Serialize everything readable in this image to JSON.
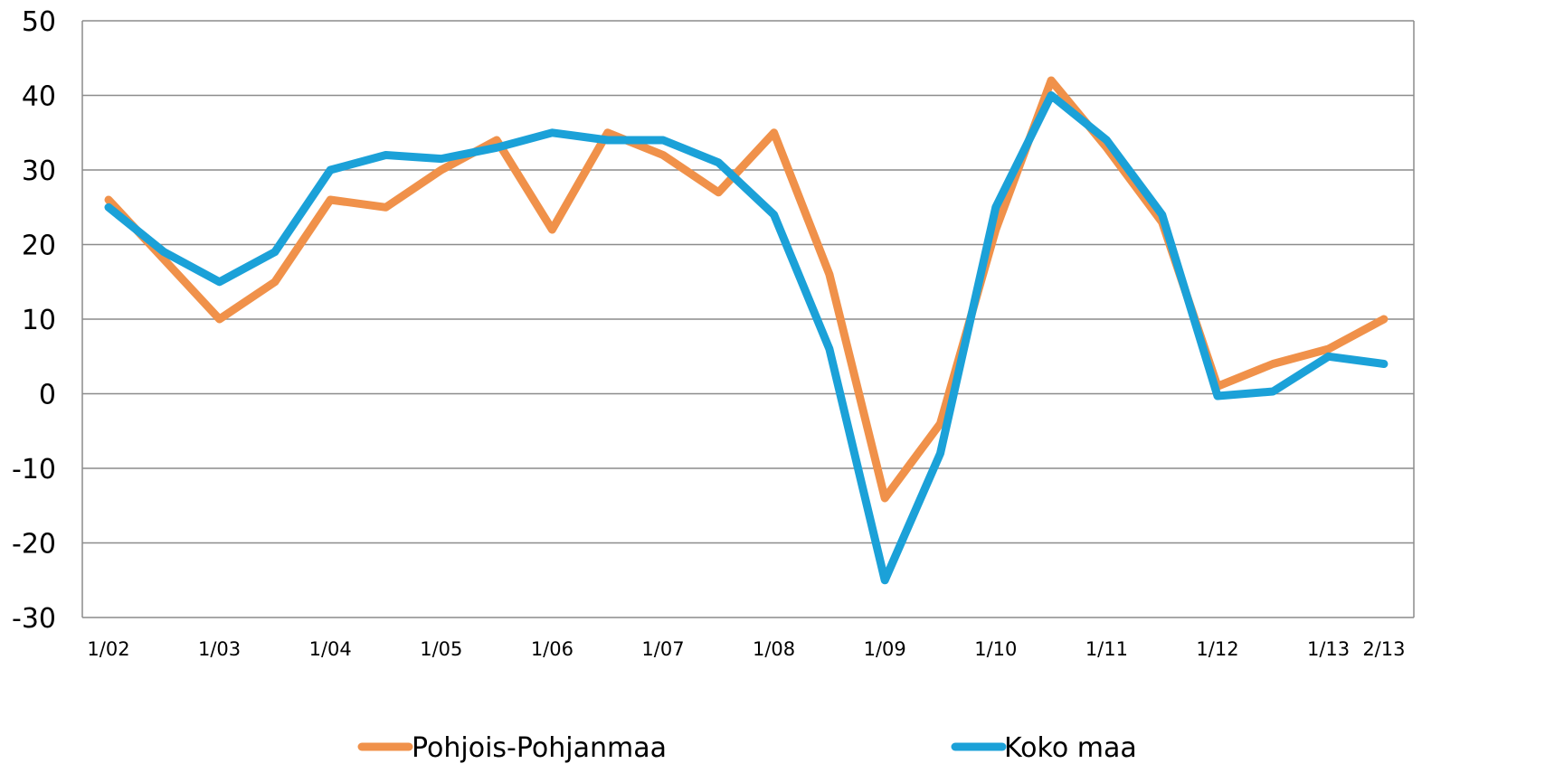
{
  "chart_data": {
    "type": "line",
    "title": "",
    "xlabel": "",
    "ylabel": "",
    "ylim": [
      -30,
      50
    ],
    "y_ticks": [
      "50",
      "40",
      "30",
      "20",
      "10",
      "0",
      "-10",
      "-20",
      "-30"
    ],
    "y_tick_values": [
      50,
      40,
      30,
      20,
      10,
      0,
      -10,
      -20,
      -30
    ],
    "x_tick_labels": [
      "1/02",
      "1/03",
      "1/04",
      "1/05",
      "1/06",
      "1/07",
      "1/08",
      "1/09",
      "1/10",
      "1/11",
      "1/12",
      "1/13",
      "2/13"
    ],
    "x_tick_indices": [
      0,
      2,
      4,
      6,
      8,
      10,
      12,
      14,
      16,
      18,
      20,
      22,
      23
    ],
    "grid": "horizontal",
    "legend_position": "bottom",
    "series": [
      {
        "name": "Pohjois-Pohjanmaa",
        "color": "#F0914A",
        "values": [
          26,
          18,
          10,
          15,
          26,
          25,
          30,
          34,
          22,
          35,
          32,
          27,
          35,
          16,
          -14,
          -4,
          22,
          42,
          33,
          23,
          1,
          4,
          6,
          10
        ]
      },
      {
        "name": "Koko maa",
        "color": "#1BA1D8",
        "values": [
          25,
          19,
          15,
          19,
          30,
          32,
          31.5,
          33,
          35,
          34,
          34,
          31,
          24,
          6,
          -25,
          -8,
          25,
          40,
          34,
          24,
          -0.3,
          0.3,
          5,
          4
        ]
      }
    ]
  }
}
